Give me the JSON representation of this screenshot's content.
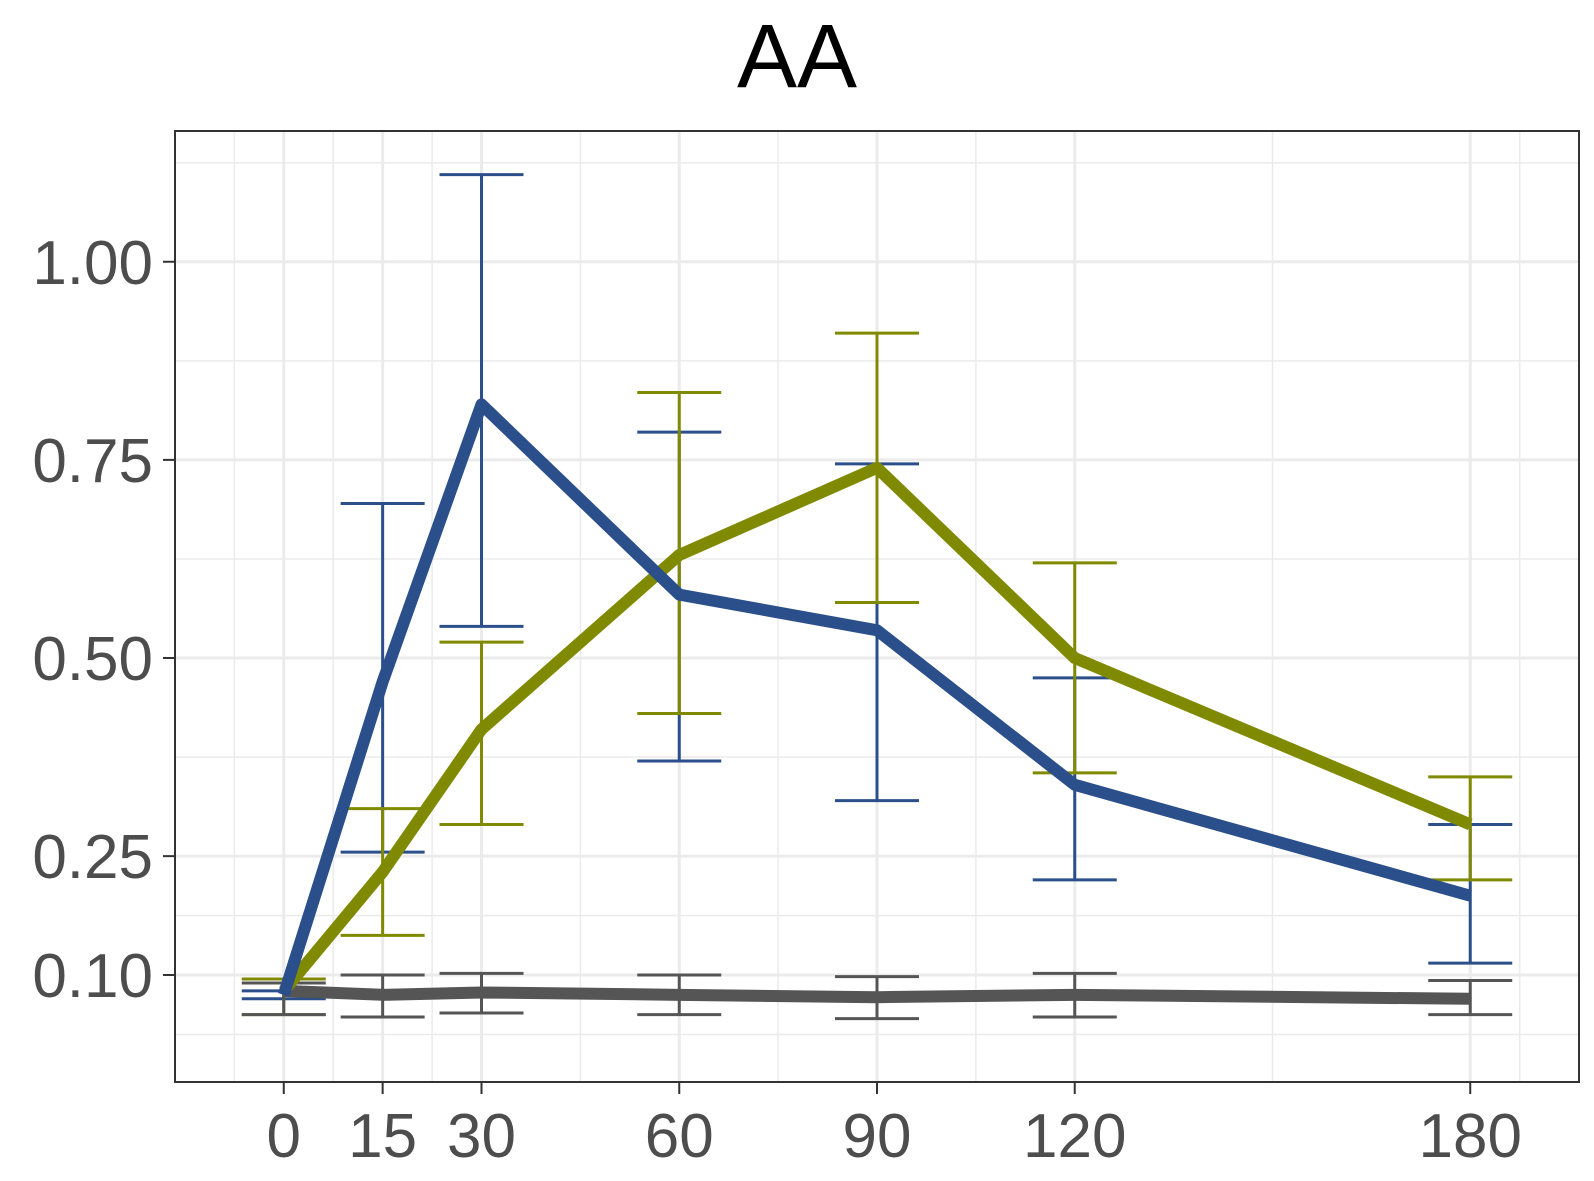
{
  "chart_data": {
    "type": "line",
    "title": "AA",
    "xlabel": "",
    "ylabel": "",
    "x": [
      0,
      15,
      30,
      60,
      90,
      120,
      180
    ],
    "x_tick_labels": [
      "0",
      "15",
      "30",
      "60",
      "90",
      "120",
      "180"
    ],
    "y_tick_labels": [
      "0.10",
      "0.25",
      "0.50",
      "0.75",
      "1.00"
    ],
    "xlim": [
      -16.5,
      196.5
    ],
    "ylim": [
      -0.035,
      1.165
    ],
    "grid": true,
    "series": [
      {
        "color": "#2B4F8A",
        "values": [
          0.075,
          0.47,
          0.82,
          0.58,
          0.535,
          0.34,
          0.2
        ],
        "err_low": [
          0.07,
          0.255,
          0.54,
          0.37,
          0.32,
          0.22,
          0.115
        ],
        "err_high": [
          0.08,
          0.695,
          1.11,
          0.785,
          0.745,
          0.475,
          0.29
        ]
      },
      {
        "color": "#808A00",
        "values": [
          0.08,
          0.23,
          0.41,
          0.63,
          0.74,
          0.5,
          0.29
        ],
        "err_low": [
          0.05,
          0.15,
          0.29,
          0.43,
          0.57,
          0.355,
          0.22
        ],
        "err_high": [
          0.095,
          0.31,
          0.52,
          0.835,
          0.91,
          0.62,
          0.35
        ]
      },
      {
        "color": "#555555",
        "values": [
          0.08,
          0.075,
          0.078,
          0.075,
          0.072,
          0.075,
          0.07
        ],
        "err_low": [
          0.05,
          0.047,
          0.052,
          0.05,
          0.045,
          0.047,
          0.05
        ],
        "err_high": [
          0.09,
          0.1,
          0.102,
          0.1,
          0.098,
          0.102,
          0.093
        ]
      }
    ]
  }
}
